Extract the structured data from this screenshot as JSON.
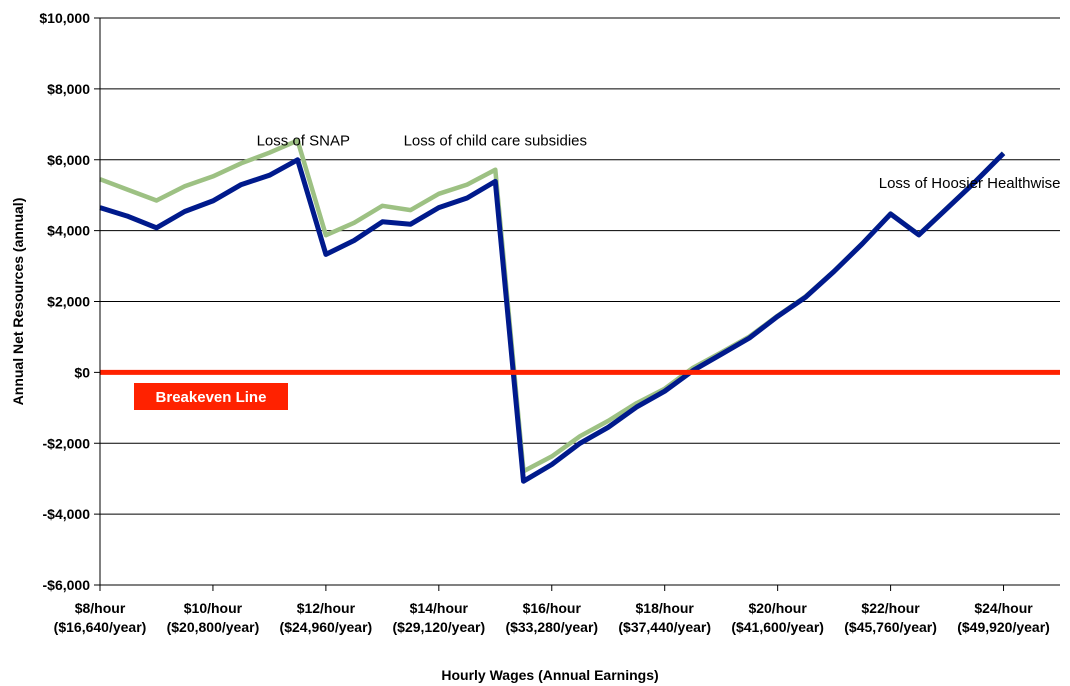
{
  "chart_data": {
    "type": "line",
    "xlabel": "Hourly Wages (Annual Earnings)",
    "ylabel": "Annual Net Resources (annual)",
    "ylim": [
      -6000,
      10000
    ],
    "yticks": [
      {
        "value": 10000,
        "label": "$10,000"
      },
      {
        "value": 8000,
        "label": "$8,000"
      },
      {
        "value": 6000,
        "label": "$6,000"
      },
      {
        "value": 4000,
        "label": "$4,000"
      },
      {
        "value": 2000,
        "label": "$2,000"
      },
      {
        "value": 0,
        "label": "$0"
      },
      {
        "value": -2000,
        "label": "-$2,000"
      },
      {
        "value": -4000,
        "label": "-$4,000"
      },
      {
        "value": -6000,
        "label": "-$6,000"
      }
    ],
    "x_range": [
      8,
      25
    ],
    "xticks": [
      {
        "x": 8,
        "line1": "$8/hour",
        "line2": "($16,640/year)"
      },
      {
        "x": 10,
        "line1": "$10/hour",
        "line2": "($20,800/year)"
      },
      {
        "x": 12,
        "line1": "$12/hour",
        "line2": "($24,960/year)"
      },
      {
        "x": 14,
        "line1": "$14/hour",
        "line2": "($29,120/year)"
      },
      {
        "x": 16,
        "line1": "$16/hour",
        "line2": "($33,280/year)"
      },
      {
        "x": 18,
        "line1": "$18/hour",
        "line2": "($37,440/year)"
      },
      {
        "x": 20,
        "line1": "$20/hour",
        "line2": "($41,600/year)"
      },
      {
        "x": 22,
        "line1": "$22/hour",
        "line2": "($45,760/year)"
      },
      {
        "x": 24,
        "line1": "$24/hour",
        "line2": "($49,920/year)"
      }
    ],
    "grid": "horizontal",
    "series": [
      {
        "color": "#9dc183",
        "points": [
          [
            8,
            5450
          ],
          [
            8.5,
            5150
          ],
          [
            9,
            4850
          ],
          [
            9.5,
            5250
          ],
          [
            10,
            5530
          ],
          [
            10.5,
            5900
          ],
          [
            11,
            6200
          ],
          [
            11.5,
            6540
          ],
          [
            12,
            3870
          ],
          [
            12.5,
            4220
          ],
          [
            13,
            4700
          ],
          [
            13.5,
            4580
          ],
          [
            14,
            5040
          ],
          [
            14.5,
            5300
          ],
          [
            15,
            5720
          ],
          [
            15.5,
            -2790
          ],
          [
            16,
            -2370
          ],
          [
            16.5,
            -1800
          ],
          [
            17,
            -1370
          ],
          [
            17.5,
            -870
          ],
          [
            18,
            -460
          ],
          [
            18.5,
            130
          ],
          [
            19,
            560
          ],
          [
            19.5,
            1010
          ],
          [
            20,
            1600
          ],
          [
            20.5,
            2150
          ],
          [
            21,
            2860
          ],
          [
            21.5,
            3640
          ],
          [
            22,
            4480
          ],
          [
            22.5,
            3890
          ],
          [
            23,
            4640
          ],
          [
            23.5,
            5390
          ],
          [
            24,
            6190
          ]
        ]
      },
      {
        "color": "#001a8c",
        "points": [
          [
            8,
            4650
          ],
          [
            8.5,
            4400
          ],
          [
            9,
            4080
          ],
          [
            9.5,
            4540
          ],
          [
            10,
            4840
          ],
          [
            10.5,
            5300
          ],
          [
            11,
            5560
          ],
          [
            11.5,
            6000
          ],
          [
            12,
            3330
          ],
          [
            12.5,
            3720
          ],
          [
            13,
            4250
          ],
          [
            13.5,
            4180
          ],
          [
            14,
            4650
          ],
          [
            14.5,
            4920
          ],
          [
            15,
            5390
          ],
          [
            15.5,
            -3070
          ],
          [
            16,
            -2600
          ],
          [
            16.5,
            -2000
          ],
          [
            17,
            -1550
          ],
          [
            17.5,
            -980
          ],
          [
            18,
            -530
          ],
          [
            18.5,
            50
          ],
          [
            19,
            510
          ],
          [
            19.5,
            970
          ],
          [
            20,
            1580
          ],
          [
            20.5,
            2130
          ],
          [
            21,
            2850
          ],
          [
            21.5,
            3630
          ],
          [
            22,
            4470
          ],
          [
            22.5,
            3880
          ],
          [
            23,
            4630
          ],
          [
            23.5,
            5380
          ],
          [
            24,
            6180
          ]
        ]
      }
    ],
    "breakeven": {
      "value": 0,
      "color": "#ff2200",
      "label": "Breakeven Line"
    },
    "annotations": [
      {
        "text": "Loss of SNAP",
        "x": 11.6,
        "y": 6400
      },
      {
        "text": "Loss of child care subsidies",
        "x": 15,
        "y": 6400
      },
      {
        "text": "Loss of Hoosier Healthwise",
        "x": 23.4,
        "y": 5200
      }
    ]
  }
}
